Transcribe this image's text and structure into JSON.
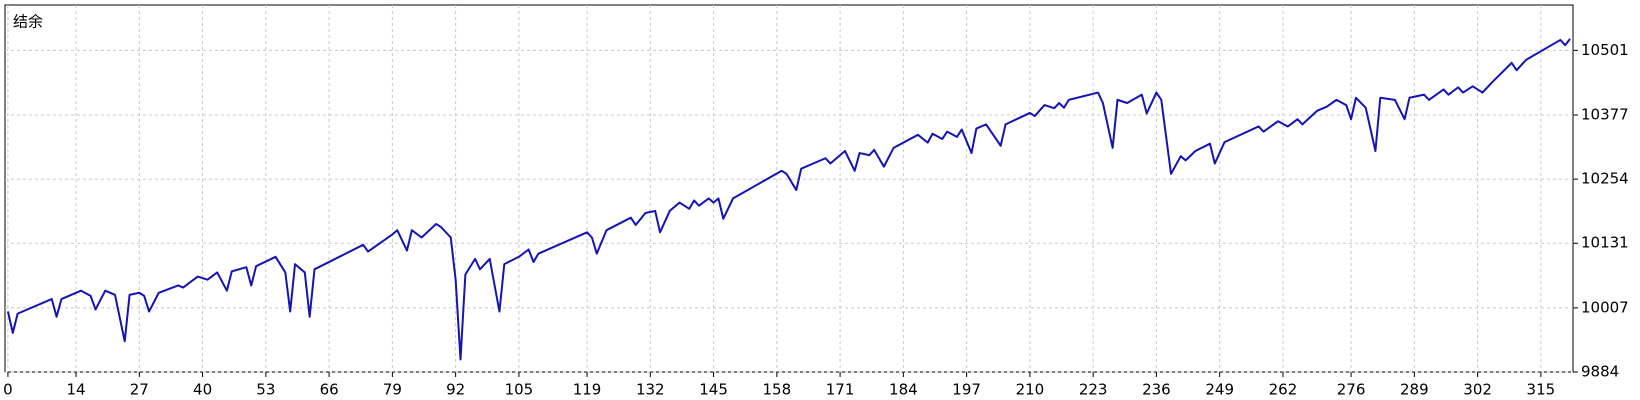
{
  "chart_data": {
    "type": "line",
    "title": "结余",
    "x": [
      0,
      1,
      2,
      9,
      10,
      11,
      15,
      17,
      18,
      20,
      22,
      24,
      25,
      27,
      28,
      29,
      31,
      35,
      36,
      39,
      41,
      43,
      45,
      46,
      49,
      50,
      51,
      55,
      57,
      58,
      59,
      61,
      62,
      63,
      73,
      74,
      79,
      80,
      82,
      83,
      85,
      88,
      89,
      91,
      92,
      93,
      94,
      96,
      97,
      99,
      101,
      102,
      105,
      107,
      108,
      109,
      119,
      120,
      121,
      123,
      128,
      129,
      131,
      133,
      134,
      136,
      138,
      140,
      141,
      142,
      144,
      145,
      146,
      147,
      149,
      159,
      160,
      162,
      163,
      168,
      169,
      172,
      174,
      175,
      177,
      178,
      179,
      180,
      182,
      184,
      187,
      189,
      190,
      192,
      193,
      195,
      196,
      198,
      199,
      201,
      204,
      205,
      210,
      211,
      213,
      215,
      216,
      217,
      218,
      224,
      225,
      227,
      228,
      230,
      233,
      234,
      236,
      237,
      239,
      241,
      242,
      244,
      247,
      248,
      250,
      257,
      258,
      261,
      263,
      265,
      266,
      269,
      271,
      273,
      275,
      276,
      277,
      279,
      281,
      282,
      285,
      287,
      288,
      291,
      292,
      295,
      296,
      298,
      299,
      301,
      303,
      305,
      309,
      310,
      312,
      319,
      320,
      321
    ],
    "values": [
      10000,
      9959,
      9996,
      10024,
      9990,
      10024,
      10040,
      10030,
      10004,
      10040,
      10032,
      9943,
      10032,
      10036,
      10030,
      10000,
      10036,
      10050,
      10046,
      10067,
      10061,
      10075,
      10040,
      10077,
      10085,
      10050,
      10087,
      10105,
      10075,
      10000,
      10091,
      10075,
      9990,
      10081,
      10128,
      10115,
      10148,
      10156,
      10117,
      10156,
      10142,
      10168,
      10162,
      10142,
      10061,
      9908,
      10071,
      10101,
      10081,
      10101,
      10000,
      10091,
      10105,
      10119,
      10095,
      10111,
      10152,
      10142,
      10111,
      10156,
      10180,
      10166,
      10189,
      10193,
      10152,
      10193,
      10209,
      10197,
      10213,
      10203,
      10217,
      10209,
      10217,
      10178,
      10217,
      10270,
      10264,
      10233,
      10274,
      10294,
      10284,
      10308,
      10270,
      10304,
      10300,
      10310,
      10294,
      10278,
      10314,
      10324,
      10339,
      10324,
      10341,
      10331,
      10345,
      10335,
      10349,
      10304,
      10351,
      10359,
      10318,
      10359,
      10381,
      10375,
      10396,
      10390,
      10400,
      10391,
      10406,
      10420,
      10400,
      10314,
      10406,
      10400,
      10416,
      10380,
      10420,
      10406,
      10264,
      10298,
      10290,
      10308,
      10322,
      10284,
      10325,
      10355,
      10345,
      10365,
      10355,
      10369,
      10359,
      10385,
      10393,
      10406,
      10396,
      10369,
      10410,
      10391,
      10308,
      10410,
      10406,
      10369,
      10410,
      10416,
      10406,
      10426,
      10416,
      10430,
      10420,
      10432,
      10420,
      10440,
      10477,
      10463,
      10483,
      10521,
      10511,
      10523
    ],
    "color": "#1414b4",
    "xlim": [
      -0.6,
      321.6
    ],
    "ylim": [
      9884,
      10588
    ],
    "xticks": [
      0,
      14,
      27,
      40,
      53,
      66,
      79,
      92,
      105,
      119,
      132,
      145,
      158,
      171,
      184,
      197,
      210,
      223,
      236,
      249,
      262,
      276,
      289,
      302,
      315
    ],
    "yticks": [
      9884,
      10007,
      10131,
      10254,
      10377,
      10501
    ],
    "grid": true
  }
}
